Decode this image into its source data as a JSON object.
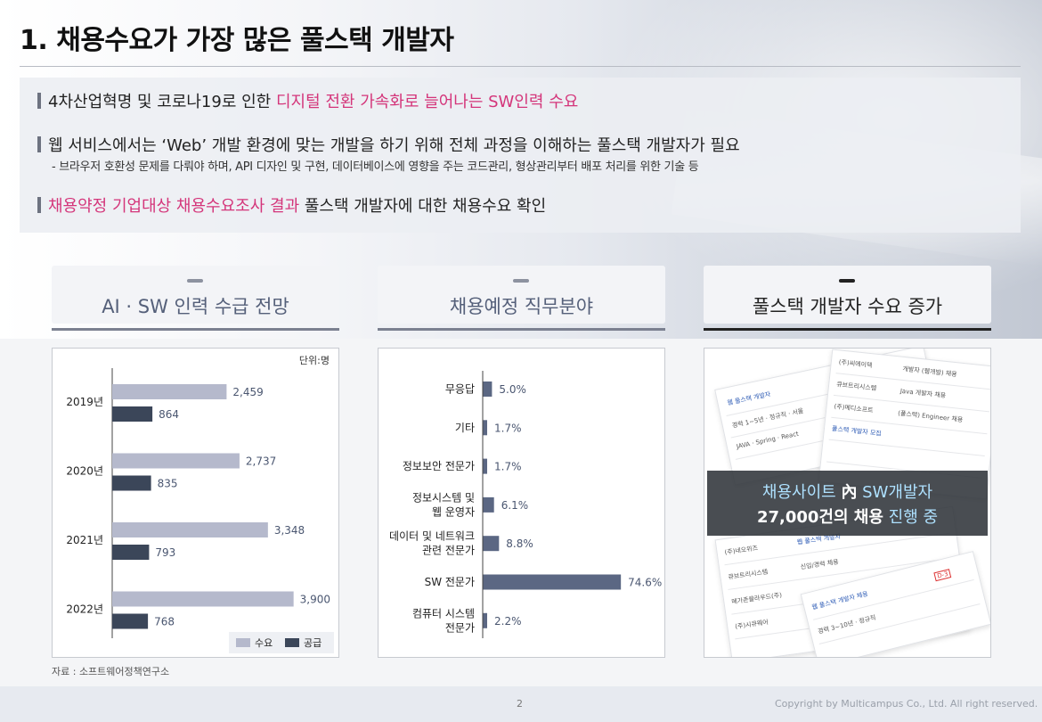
{
  "title": "1. 채용수요가 가장 많은 풀스택 개발자",
  "bullets": [
    {
      "plain": "4차산업혁명 및 코로나19로 인한 ",
      "highlight": "디지털 전환 가속화로 늘어나는 SW인력 수요",
      "plain_after": ""
    },
    {
      "plain": "웹 서비스에서는 ‘Web’ 개발 환경에 맞는 개발을 하기 위해 전체 과정을 이해하는 풀스택 개발자가 필요",
      "highlight": "",
      "plain_after": ""
    },
    {
      "plain": "",
      "highlight": "채용약정 기업대상 채용수요조사 결과",
      "plain_after": " 풀스택 개발자에 대한 채용수요 확인"
    }
  ],
  "sub_bullet": "- 브라우저 호환성 문제를 다뤄야 하며, API 디자인 및 구현, 데이터베이스에 영향을 주는 코드관리, 형상관리부터 배포 처리를 위한 기술 등",
  "cards": [
    {
      "label": "AI · SW 인력 수급 전망"
    },
    {
      "label": "채용예정 직무분야"
    },
    {
      "label": "풀스택 개발자 수요 증가"
    }
  ],
  "colors": {
    "accent_pink": "#d4357a",
    "demand_bar": "#b5b9cc",
    "supply_bar": "#3b4659",
    "job_bar": "#5b6783",
    "value_text": "#4a5670"
  },
  "chart_data": [
    {
      "type": "bar",
      "orientation": "horizontal",
      "unit": "단위:명",
      "categories": [
        "2019년",
        "2020년",
        "2021년",
        "2022년"
      ],
      "series": [
        {
          "name": "수요",
          "values": [
            2459,
            2737,
            3348,
            3900
          ],
          "labels": [
            "2,459",
            "2,737",
            "3,348",
            "3,900"
          ]
        },
        {
          "name": "공급",
          "values": [
            864,
            835,
            793,
            768
          ],
          "labels": [
            "864",
            "835",
            "793",
            "768"
          ]
        }
      ],
      "xlim": [
        0,
        4500
      ],
      "legend": "bottom-right"
    },
    {
      "type": "bar",
      "orientation": "horizontal",
      "categories": [
        "무응답",
        "기타",
        "정보보안 전문가",
        "정보시스템 및\n웹 운영자",
        "데이터 및 네트워크\n관련 전문가",
        "SW 전문가",
        "컴퓨터 시스템\n전문가"
      ],
      "values": [
        5.0,
        1.7,
        1.7,
        6.1,
        8.8,
        74.6,
        2.2
      ],
      "labels": [
        "5.0%",
        "1.7%",
        "1.7%",
        "6.1%",
        "8.8%",
        "74.6%",
        "2.2%"
      ],
      "xlim": [
        0,
        100
      ]
    }
  ],
  "jobsite": {
    "line1_prefix": "채용사이트 ",
    "line1_suffix": " SW개발자",
    "line2_bold": "27,000건의 채용",
    "line2_rest": " 진행 중",
    "in_symbol": "內"
  },
  "source": "자료 : 소프트웨어정책연구소",
  "page_number": "2",
  "copyright": "Copyright by Multicampus Co., Ltd. All right reserved."
}
